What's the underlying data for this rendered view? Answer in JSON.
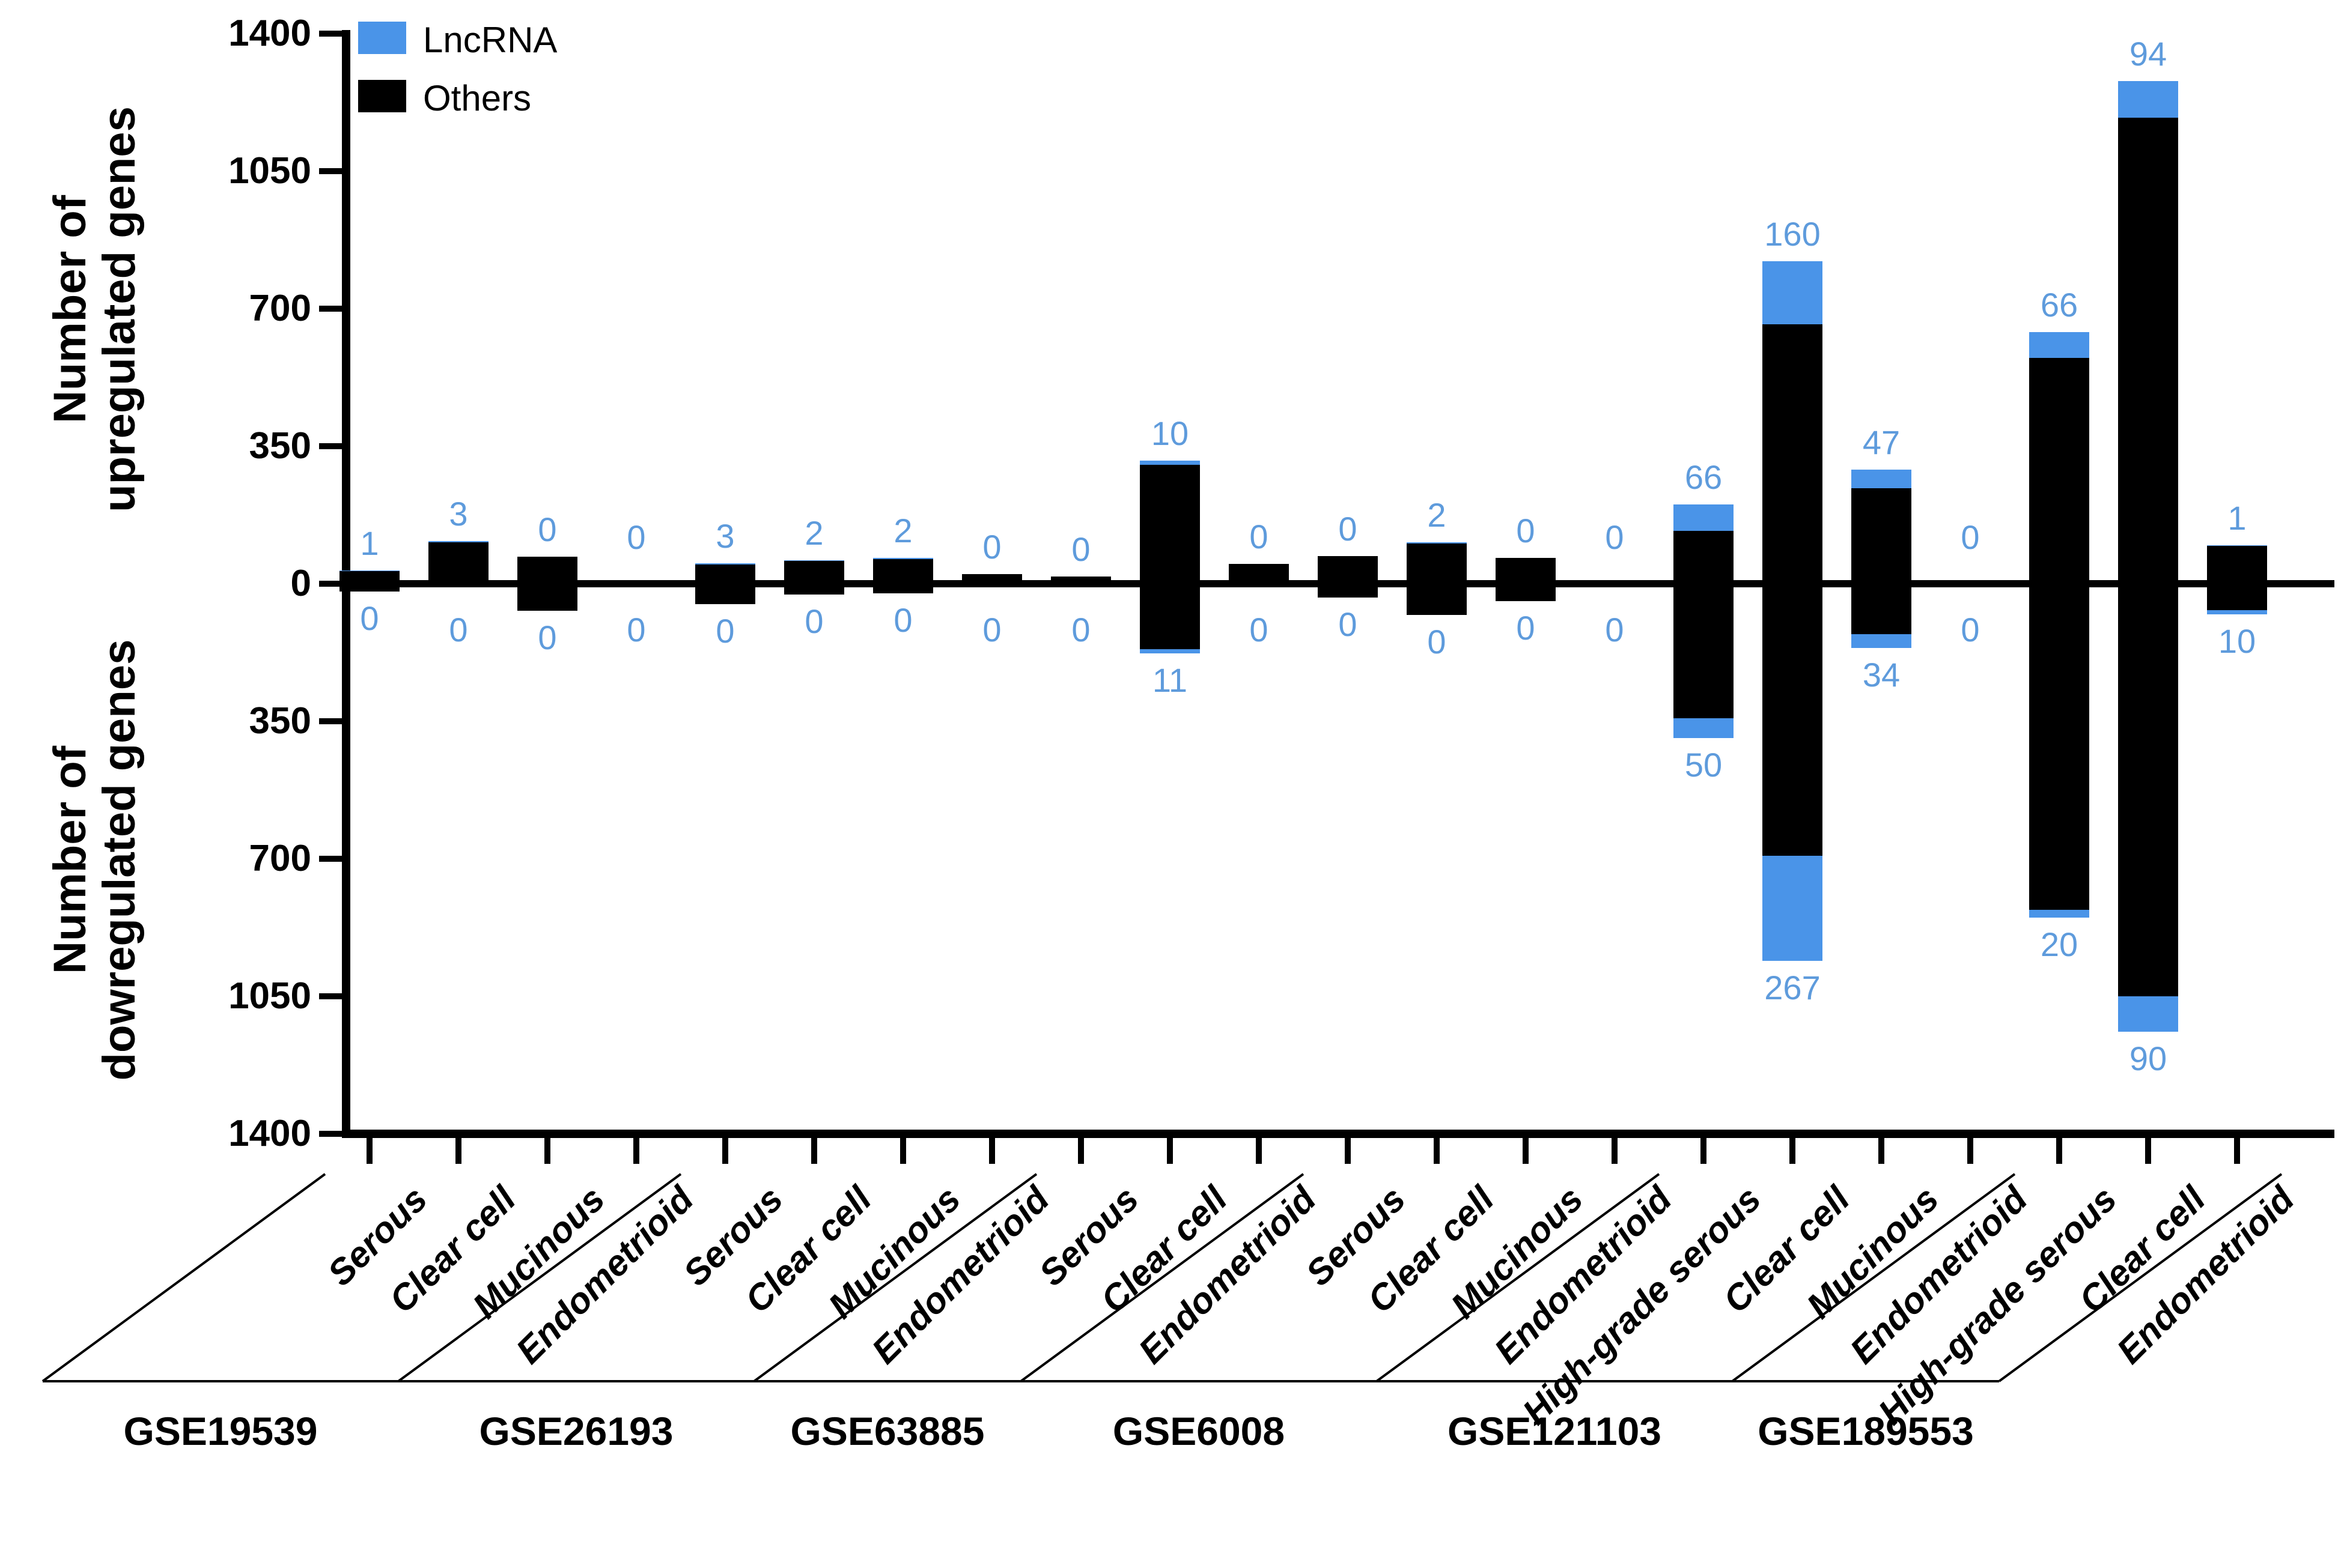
{
  "legend": {
    "items": [
      {
        "label": "LncRNA",
        "color_key": "lncrna"
      },
      {
        "label": "Others",
        "color_key": "others"
      }
    ]
  },
  "colors": {
    "lncrna": "#4a94e8",
    "others": "#000000",
    "value_label": "#5e9bdc",
    "axis": "#000000"
  },
  "y_axis": {
    "upper_title": "Number of\nupregulated genes",
    "lower_title": "Number of\ndowregulated genes",
    "upper_ticks": [
      "1400",
      "1050",
      "700",
      "350"
    ],
    "zero_label": "0",
    "lower_ticks": [
      "350",
      "700",
      "1050",
      "1400"
    ],
    "tick_step": 350,
    "max": 1400
  },
  "chart_data": {
    "type": "bar",
    "subtype": "diverging-stacked",
    "title": "",
    "xlabel": "",
    "ylabel_up": "Number of upregulated genes",
    "ylabel_down": "Number of dowregulated genes",
    "ylim_up": [
      0,
      1400
    ],
    "ylim_down": [
      0,
      1400
    ],
    "grid": false,
    "legend_position": "top-left-inside",
    "series": [
      {
        "name": "LncRNA",
        "color": "#4a94e8"
      },
      {
        "name": "Others",
        "color": "#000000"
      }
    ],
    "note": "up_others/down_others are estimated from axis scale; up_lncrna/down_lncrna are the blue printed labels",
    "groups": [
      {
        "dataset": "GSE19539",
        "bars": [
          {
            "category": "Serous",
            "up_lncrna": 1,
            "up_others": 32,
            "down_lncrna": 0,
            "down_others": 20
          },
          {
            "category": "Clear cell",
            "up_lncrna": 3,
            "up_others": 106,
            "down_lncrna": 0,
            "down_others": 0
          },
          {
            "category": "Mucinous",
            "up_lncrna": 0,
            "up_others": 69,
            "down_lncrna": 0,
            "down_others": 69
          },
          {
            "category": "Endometrioid",
            "up_lncrna": 0,
            "up_others": 0,
            "down_lncrna": 0,
            "down_others": 0
          }
        ]
      },
      {
        "dataset": "GSE26193",
        "bars": [
          {
            "category": "Serous",
            "up_lncrna": 3,
            "up_others": 49,
            "down_lncrna": 0,
            "down_others": 52
          },
          {
            "category": "Clear cell",
            "up_lncrna": 2,
            "up_others": 58,
            "down_lncrna": 0,
            "down_others": 28
          },
          {
            "category": "Mucinous",
            "up_lncrna": 2,
            "up_others": 63,
            "down_lncrna": 0,
            "down_others": 25
          },
          {
            "category": "Endometrioid",
            "up_lncrna": 0,
            "up_others": 25,
            "down_lncrna": 0,
            "down_others": 0
          }
        ]
      },
      {
        "dataset": "GSE63885",
        "bars": [
          {
            "category": "Serous",
            "up_lncrna": 0,
            "up_others": 18,
            "down_lncrna": 0,
            "down_others": 0
          },
          {
            "category": "Clear cell",
            "up_lncrna": 10,
            "up_others": 303,
            "down_lncrna": 11,
            "down_others": 167
          },
          {
            "category": "Endometrioid",
            "up_lncrna": 0,
            "up_others": 50,
            "down_lncrna": 0,
            "down_others": 0
          }
        ]
      },
      {
        "dataset": "GSE6008",
        "bars": [
          {
            "category": "Serous",
            "up_lncrna": 0,
            "up_others": 70,
            "down_lncrna": 0,
            "down_others": 35
          },
          {
            "category": "Clear cell",
            "up_lncrna": 2,
            "up_others": 103,
            "down_lncrna": 0,
            "down_others": 80
          },
          {
            "category": "Mucinous",
            "up_lncrna": 0,
            "up_others": 65,
            "down_lncrna": 0,
            "down_others": 45
          },
          {
            "category": "Endometrioid",
            "up_lncrna": 0,
            "up_others": 0,
            "down_lncrna": 0,
            "down_others": 0
          }
        ]
      },
      {
        "dataset": "GSE121103",
        "bars": [
          {
            "category": "High-grade serous",
            "up_lncrna": 66,
            "up_others": 135,
            "down_lncrna": 50,
            "down_others": 343
          },
          {
            "category": "Clear cell",
            "up_lncrna": 160,
            "up_others": 660,
            "down_lncrna": 267,
            "down_others": 693
          },
          {
            "category": "Mucinous",
            "up_lncrna": 47,
            "up_others": 243,
            "down_lncrna": 34,
            "down_others": 129
          },
          {
            "category": "Endometrioid",
            "up_lncrna": 0,
            "up_others": 0,
            "down_lncrna": 0,
            "down_others": 0
          }
        ]
      },
      {
        "dataset": "GSE189553",
        "bars": [
          {
            "category": "High-grade serous",
            "up_lncrna": 66,
            "up_others": 574,
            "down_lncrna": 20,
            "down_others": 830
          },
          {
            "category": "Clear cell",
            "up_lncrna": 94,
            "up_others": 1186,
            "down_lncrna": 90,
            "down_others": 1050
          },
          {
            "category": "Endometrioid",
            "up_lncrna": 1,
            "up_others": 97,
            "down_lncrna": 10,
            "down_others": 68
          }
        ]
      }
    ]
  }
}
